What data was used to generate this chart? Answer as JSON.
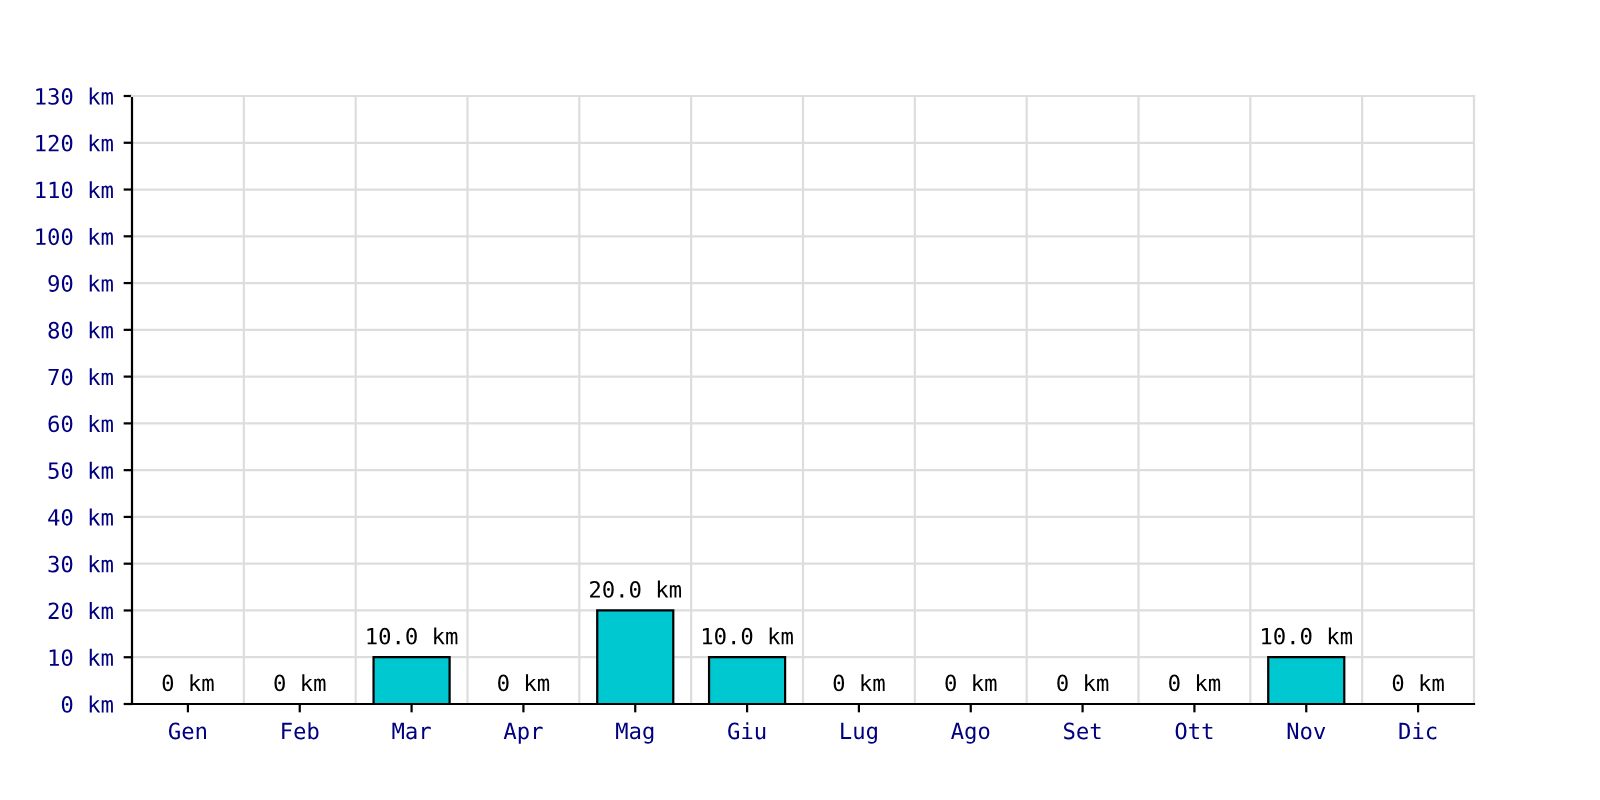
{
  "chart_data": {
    "type": "bar",
    "categories": [
      "Gen",
      "Feb",
      "Mar",
      "Apr",
      "Mag",
      "Giu",
      "Lug",
      "Ago",
      "Set",
      "Ott",
      "Nov",
      "Dic"
    ],
    "values": [
      0,
      0,
      10,
      0,
      20,
      10,
      0,
      0,
      0,
      0,
      10,
      0
    ],
    "value_labels": [
      "0 km",
      "0 km",
      "10.0 km",
      "0 km",
      "20.0 km",
      "10.0 km",
      "0 km",
      "0 km",
      "0 km",
      "0 km",
      "10.0 km",
      "0 km"
    ],
    "color": "#00c8d0",
    "ylim": [
      0,
      130
    ],
    "yticks": [
      {
        "value": 0,
        "label": "0 km"
      },
      {
        "value": 10,
        "label": "10 km"
      },
      {
        "value": 20,
        "label": "20 km"
      },
      {
        "value": 30,
        "label": "30 km"
      },
      {
        "value": 40,
        "label": "40 km"
      },
      {
        "value": 50,
        "label": "50 km"
      },
      {
        "value": 60,
        "label": "60 km"
      },
      {
        "value": 70,
        "label": "70 km"
      },
      {
        "value": 80,
        "label": "80 km"
      },
      {
        "value": 90,
        "label": "90 km"
      },
      {
        "value": 100,
        "label": "100 km"
      },
      {
        "value": 110,
        "label": "110 km"
      },
      {
        "value": 120,
        "label": "120 km"
      },
      {
        "value": 130,
        "label": "130 km"
      }
    ],
    "grid": true
  }
}
